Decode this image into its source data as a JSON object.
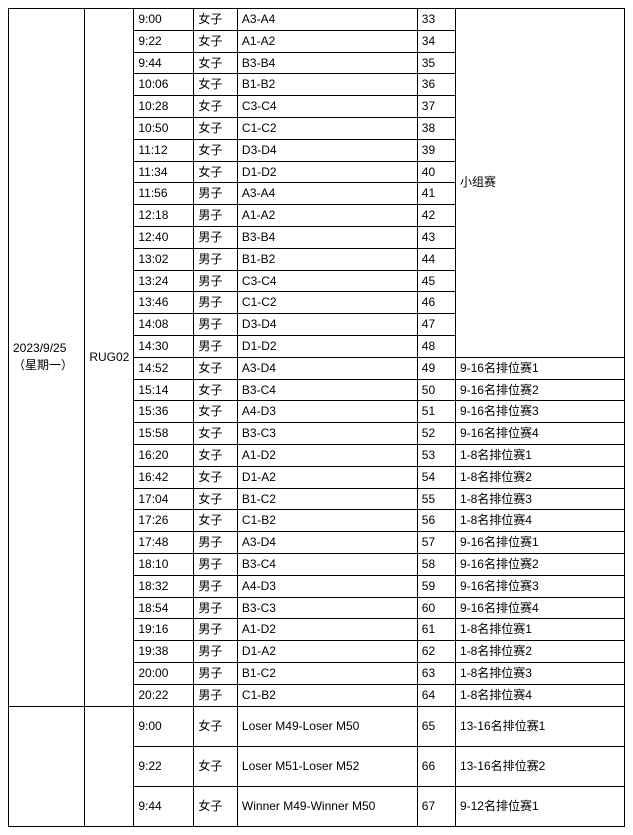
{
  "date_label": "2023/9/25\n（星期一）",
  "code": "RUG02",
  "group_stage_label": "小组赛",
  "rows_top": [
    {
      "time": "9:00",
      "gender": "女子",
      "match": "A3-A4",
      "num": "33",
      "note": ""
    },
    {
      "time": "9:22",
      "gender": "女子",
      "match": "A1-A2",
      "num": "34",
      "note": ""
    },
    {
      "time": "9:44",
      "gender": "女子",
      "match": "B3-B4",
      "num": "35",
      "note": ""
    },
    {
      "time": "10:06",
      "gender": "女子",
      "match": "B1-B2",
      "num": "36",
      "note": ""
    },
    {
      "time": "10:28",
      "gender": "女子",
      "match": "C3-C4",
      "num": "37",
      "note": ""
    },
    {
      "time": "10:50",
      "gender": "女子",
      "match": "C1-C2",
      "num": "38",
      "note": ""
    },
    {
      "time": "11:12",
      "gender": "女子",
      "match": "D3-D4",
      "num": "39",
      "note": ""
    },
    {
      "time": "11:34",
      "gender": "女子",
      "match": "D1-D2",
      "num": "40",
      "note": ""
    },
    {
      "time": "11:56",
      "gender": "男子",
      "match": "A3-A4",
      "num": "41",
      "note": ""
    },
    {
      "time": "12:18",
      "gender": "男子",
      "match": "A1-A2",
      "num": "42",
      "note": ""
    },
    {
      "time": "12:40",
      "gender": "男子",
      "match": "B3-B4",
      "num": "43",
      "note": ""
    },
    {
      "time": "13:02",
      "gender": "男子",
      "match": "B1-B2",
      "num": "44",
      "note": ""
    },
    {
      "time": "13:24",
      "gender": "男子",
      "match": "C3-C4",
      "num": "45",
      "note": ""
    },
    {
      "time": "13:46",
      "gender": "男子",
      "match": "C1-C2",
      "num": "46",
      "note": ""
    },
    {
      "time": "14:08",
      "gender": "男子",
      "match": "D3-D4",
      "num": "47",
      "note": ""
    },
    {
      "time": "14:30",
      "gender": "男子",
      "match": "D1-D2",
      "num": "48",
      "note": ""
    }
  ],
  "rows_mid": [
    {
      "time": "14:52",
      "gender": "女子",
      "match": "A3-D4",
      "num": "49",
      "note": "9-16名排位赛1"
    },
    {
      "time": "15:14",
      "gender": "女子",
      "match": "B3-C4",
      "num": "50",
      "note": "9-16名排位赛2"
    },
    {
      "time": "15:36",
      "gender": "女子",
      "match": "A4-D3",
      "num": "51",
      "note": "9-16名排位赛3"
    },
    {
      "time": "15:58",
      "gender": "女子",
      "match": "B3-C3",
      "num": "52",
      "note": "9-16名排位赛4"
    },
    {
      "time": "16:20",
      "gender": "女子",
      "match": "A1-D2",
      "num": "53",
      "note": "1-8名排位赛1"
    },
    {
      "time": "16:42",
      "gender": "女子",
      "match": "D1-A2",
      "num": "54",
      "note": "1-8名排位赛2"
    },
    {
      "time": "17:04",
      "gender": "女子",
      "match": "B1-C2",
      "num": "55",
      "note": "1-8名排位赛3"
    },
    {
      "time": "17:26",
      "gender": "女子",
      "match": "C1-B2",
      "num": "56",
      "note": "1-8名排位赛4"
    },
    {
      "time": "17:48",
      "gender": "男子",
      "match": "A3-D4",
      "num": "57",
      "note": "9-16名排位赛1"
    },
    {
      "time": "18:10",
      "gender": "男子",
      "match": "B3-C4",
      "num": "58",
      "note": "9-16名排位赛2"
    },
    {
      "time": "18:32",
      "gender": "男子",
      "match": "A4-D3",
      "num": "59",
      "note": "9-16名排位赛3"
    },
    {
      "time": "18:54",
      "gender": "男子",
      "match": "B3-C3",
      "num": "60",
      "note": "9-16名排位赛4"
    },
    {
      "time": "19:16",
      "gender": "男子",
      "match": "A1-D2",
      "num": "61",
      "note": "1-8名排位赛1"
    },
    {
      "time": "19:38",
      "gender": "男子",
      "match": "D1-A2",
      "num": "62",
      "note": "1-8名排位赛2"
    },
    {
      "time": "20:00",
      "gender": "男子",
      "match": "B1-C2",
      "num": "63",
      "note": "1-8名排位赛3"
    },
    {
      "time": "20:22",
      "gender": "男子",
      "match": "C1-B2",
      "num": "64",
      "note": "1-8名排位赛4"
    }
  ],
  "rows_bottom": [
    {
      "time": "9:00",
      "gender": "女子",
      "match": "Loser M49-Loser M50",
      "num": "65",
      "note": "13-16名排位赛1"
    },
    {
      "time": "9:22",
      "gender": "女子",
      "match": "Loser M51-Loser M52",
      "num": "66",
      "note": "13-16名排位赛2"
    },
    {
      "time": "9:44",
      "gender": "女子",
      "match": "Winner M49-Winner M50",
      "num": "67",
      "note": "9-12名排位赛1"
    }
  ]
}
